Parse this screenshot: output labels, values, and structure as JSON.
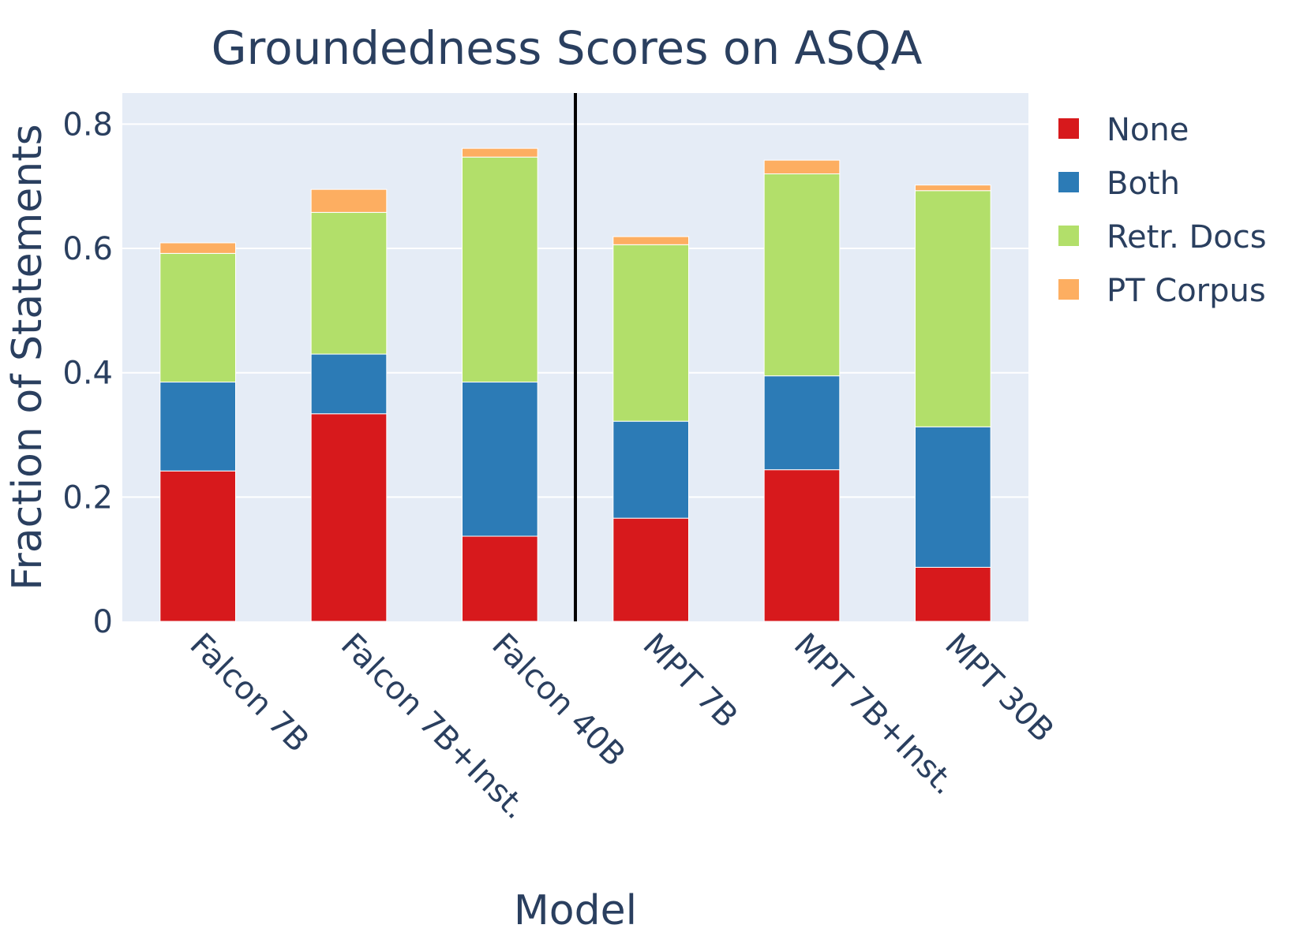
{
  "chart_data": {
    "type": "bar",
    "stacked": true,
    "title": "Groundedness Scores on ASQA",
    "xlabel": "Model",
    "ylabel": "Fraction of Statements",
    "categories": [
      "Falcon 7B",
      "Falcon 7B+Inst.",
      "Falcon 40B",
      "MPT 7B",
      "MPT 7B+Inst.",
      "MPT 30B"
    ],
    "ylim": [
      0,
      0.85
    ],
    "yticks": [
      {
        "value": 0,
        "label": "0"
      },
      {
        "value": 0.2,
        "label": "0.2"
      },
      {
        "value": 0.4,
        "label": "0.4"
      },
      {
        "value": 0.6,
        "label": "0.6"
      },
      {
        "value": 0.8,
        "label": "0.8"
      }
    ],
    "grid": true,
    "legend_position": "top-right",
    "separator_after_category": "Falcon 40B",
    "series": [
      {
        "name": "None",
        "color": "#d7191c",
        "values": [
          0.242,
          0.334,
          0.137,
          0.166,
          0.244,
          0.087
        ]
      },
      {
        "name": "Both",
        "color": "#2c7bb6",
        "values": [
          0.143,
          0.096,
          0.248,
          0.156,
          0.151,
          0.226
        ]
      },
      {
        "name": "Retr. Docs",
        "color": "#b2df6a",
        "values": [
          0.207,
          0.228,
          0.362,
          0.284,
          0.325,
          0.38
        ]
      },
      {
        "name": "PT Corpus",
        "color": "#fdae61",
        "values": [
          0.017,
          0.037,
          0.014,
          0.013,
          0.022,
          0.009
        ]
      }
    ]
  }
}
